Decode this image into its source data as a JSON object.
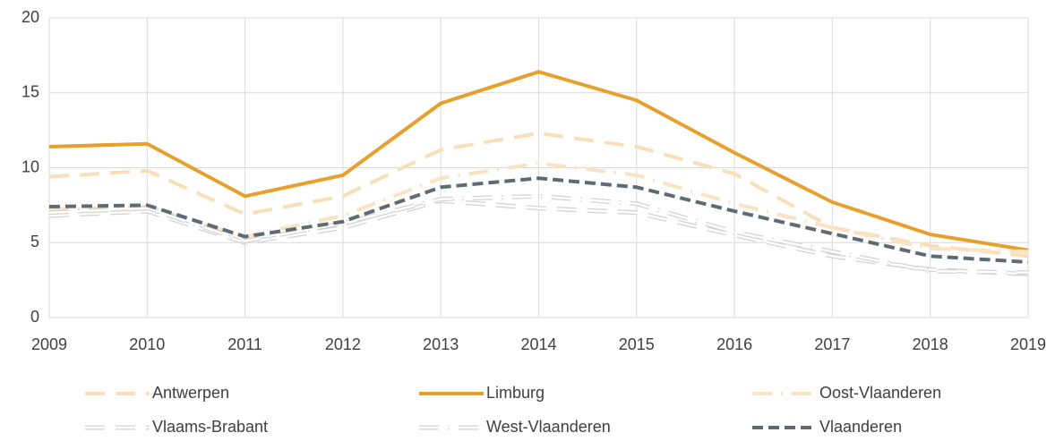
{
  "chart_data": {
    "type": "line",
    "categories": [
      "2009",
      "2010",
      "2011",
      "2012",
      "2013",
      "2014",
      "2015",
      "2016",
      "2017",
      "2018",
      "2019"
    ],
    "series": [
      {
        "name": "Antwerpen",
        "color": "#f9dfb8",
        "dash": "long-dash",
        "values": [
          9.4,
          9.8,
          6.9,
          8.1,
          11.2,
          12.3,
          11.4,
          9.6,
          6.0,
          4.8,
          4.1
        ]
      },
      {
        "name": "Limburg",
        "color": "#e8a02c",
        "dash": "solid",
        "values": [
          11.4,
          11.6,
          8.1,
          9.5,
          14.3,
          16.4,
          14.5,
          11.0,
          7.7,
          5.55,
          4.5
        ]
      },
      {
        "name": "Oost-Vlaanderen",
        "color": "#fae3c3",
        "dash": "dash-dot",
        "values": [
          7.2,
          7.4,
          5.4,
          6.8,
          9.3,
          10.3,
          9.5,
          7.6,
          6.0,
          4.6,
          4.4
        ]
      },
      {
        "name": "Vlaams-Brabant",
        "color": "#d2d2d2",
        "dash": "long-dash",
        "outline": true,
        "values": [
          6.8,
          7.1,
          5.0,
          6.0,
          7.8,
          7.3,
          7.0,
          5.5,
          4.1,
          3.2,
          2.9
        ]
      },
      {
        "name": "West-Vlaanderen",
        "color": "#d2d2d2",
        "dash": "dash-dot",
        "outline": true,
        "values": [
          7.0,
          7.3,
          5.1,
          6.3,
          7.9,
          8.1,
          7.6,
          5.7,
          4.4,
          3.1,
          3.0
        ]
      },
      {
        "name": "Vlaanderen",
        "color": "#5f6b73",
        "dash": "dash",
        "values": [
          7.4,
          7.5,
          5.4,
          6.4,
          8.7,
          9.3,
          8.7,
          7.1,
          5.6,
          4.1,
          3.7
        ]
      }
    ],
    "ylim": [
      0,
      20
    ],
    "yticks": [
      0,
      5,
      10,
      15,
      20
    ],
    "grid": true
  }
}
